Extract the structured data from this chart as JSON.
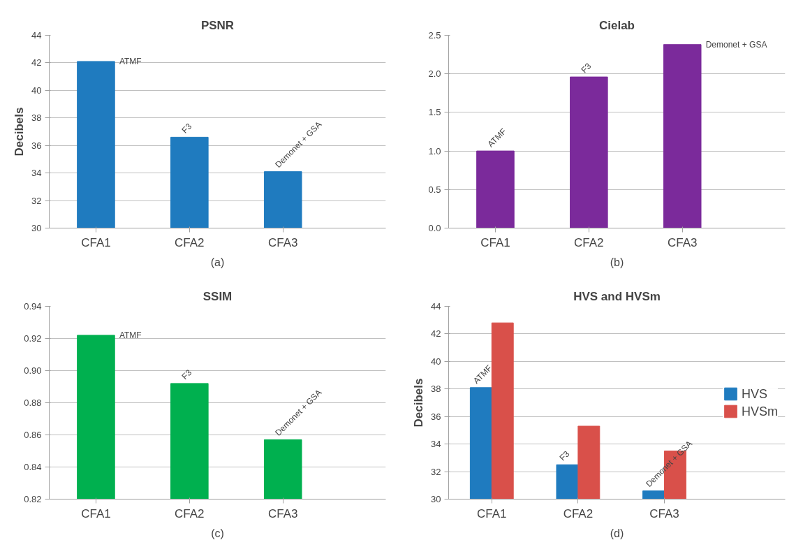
{
  "chart_data": [
    {
      "type": "bar",
      "title": "PSNR",
      "ylabel": "Decibels",
      "categories": [
        "CFA1",
        "CFA2",
        "CFA3"
      ],
      "values": [
        42.1,
        36.6,
        34.1
      ],
      "color": "#1f7bbf",
      "ylim": [
        30,
        44
      ],
      "yticks": [
        30,
        32,
        34,
        36,
        38,
        40,
        42,
        44
      ],
      "grid": "y",
      "legend": false,
      "annotations": [
        {
          "text": "ATMF",
          "x": "CFA1",
          "y": 42.1
        },
        {
          "text": "F3",
          "x": "CFA2",
          "y": 36.6
        },
        {
          "text": "Demonet + GSA",
          "x": "CFA3",
          "y": 34.1
        },
        "(a)"
      ]
    },
    {
      "type": "bar",
      "title": "Cielab",
      "categories": [
        "CFA1",
        "CFA2",
        "CFA3"
      ],
      "values": [
        1.0,
        1.96,
        2.38
      ],
      "color": "#7b2a9b",
      "ylim": [
        0,
        2.5
      ],
      "yticks": [
        {
          "value": 0,
          "label": "0.0"
        },
        0.5,
        {
          "value": 1,
          "label": "1.0"
        },
        1.5,
        {
          "value": 2,
          "label": "2.0"
        },
        2.5
      ],
      "grid": "y",
      "legend": false,
      "annotations": [
        {
          "text": "ATMF",
          "x": "CFA1",
          "y": 1.0
        },
        {
          "text": "F3",
          "x": "CFA2",
          "y": 1.96
        },
        {
          "text": "Demonet + GSA",
          "x": "CFA3",
          "y": 2.38
        },
        "(b)"
      ]
    },
    {
      "type": "bar",
      "title": "SSIM",
      "categories": [
        "CFA1",
        "CFA2",
        "CFA3"
      ],
      "values": [
        0.922,
        0.892,
        0.857
      ],
      "color": "#00b04f",
      "ylim": [
        0.82,
        0.94
      ],
      "yticks": [
        {
          "value": 0.82,
          "label": "0.82"
        },
        {
          "value": 0.84,
          "label": "0.84"
        },
        {
          "value": 0.86,
          "label": "0.86"
        },
        {
          "value": 0.88,
          "label": "0.88"
        },
        {
          "value": 0.9,
          "label": "0.90"
        },
        {
          "value": 0.92,
          "label": "0.92"
        },
        {
          "value": 0.94,
          "label": "0.94"
        }
      ],
      "grid": "y",
      "legend": false,
      "annotations": [
        {
          "text": "ATMF",
          "x": "CFA1",
          "y": 0.922
        },
        {
          "text": "F3",
          "x": "CFA2",
          "y": 0.892
        },
        {
          "text": "Demonet + GSA",
          "x": "CFA3",
          "y": 0.857
        },
        "(c)"
      ]
    },
    {
      "type": "bar",
      "title": "HVS and HVSm",
      "ylabel": "Decibels",
      "categories": [
        "CFA1",
        "CFA2",
        "CFA3"
      ],
      "ylim": [
        30,
        44
      ],
      "yticks": [
        30,
        32,
        34,
        36,
        38,
        40,
        42,
        44
      ],
      "grid": "y",
      "legend": "right",
      "series": [
        {
          "name": "HVS",
          "color": "#1f7bbf",
          "values": [
            38.1,
            32.5,
            30.6
          ]
        },
        {
          "name": "HVSm",
          "color": "#d9504a",
          "values": [
            42.8,
            35.3,
            33.5
          ]
        }
      ],
      "annotations": [
        {
          "text": "ATMF",
          "x": "CFA1",
          "y": 38.1
        },
        {
          "text": "F3",
          "x": "CFA2",
          "y": 32.5
        },
        {
          "text": "Demonet + GSA",
          "x": "CFA3",
          "y": 30.6
        },
        "(d)"
      ]
    }
  ]
}
